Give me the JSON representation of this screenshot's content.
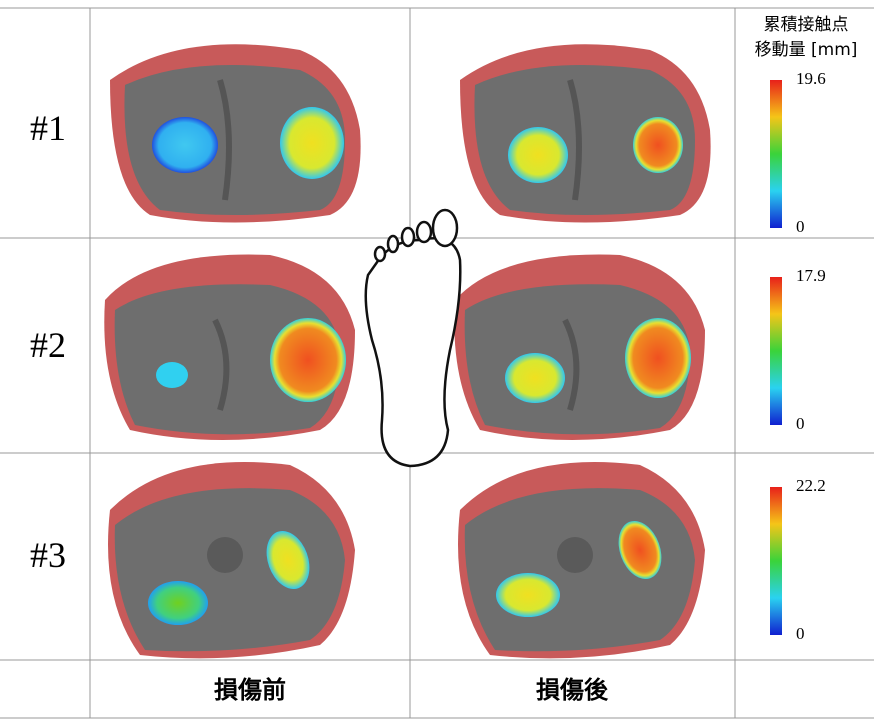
{
  "colorbar_title": [
    "累積接触点",
    "移動量 [mm]"
  ],
  "columns": [
    "損傷前",
    "損傷後"
  ],
  "rows": [
    {
      "label": "#1",
      "colorbar": {
        "max": 19.6,
        "min": 0
      }
    },
    {
      "label": "#2",
      "colorbar": {
        "max": 17.9,
        "min": 0
      }
    },
    {
      "label": "#3",
      "colorbar": {
        "max": 22.2,
        "min": 0
      }
    }
  ]
}
